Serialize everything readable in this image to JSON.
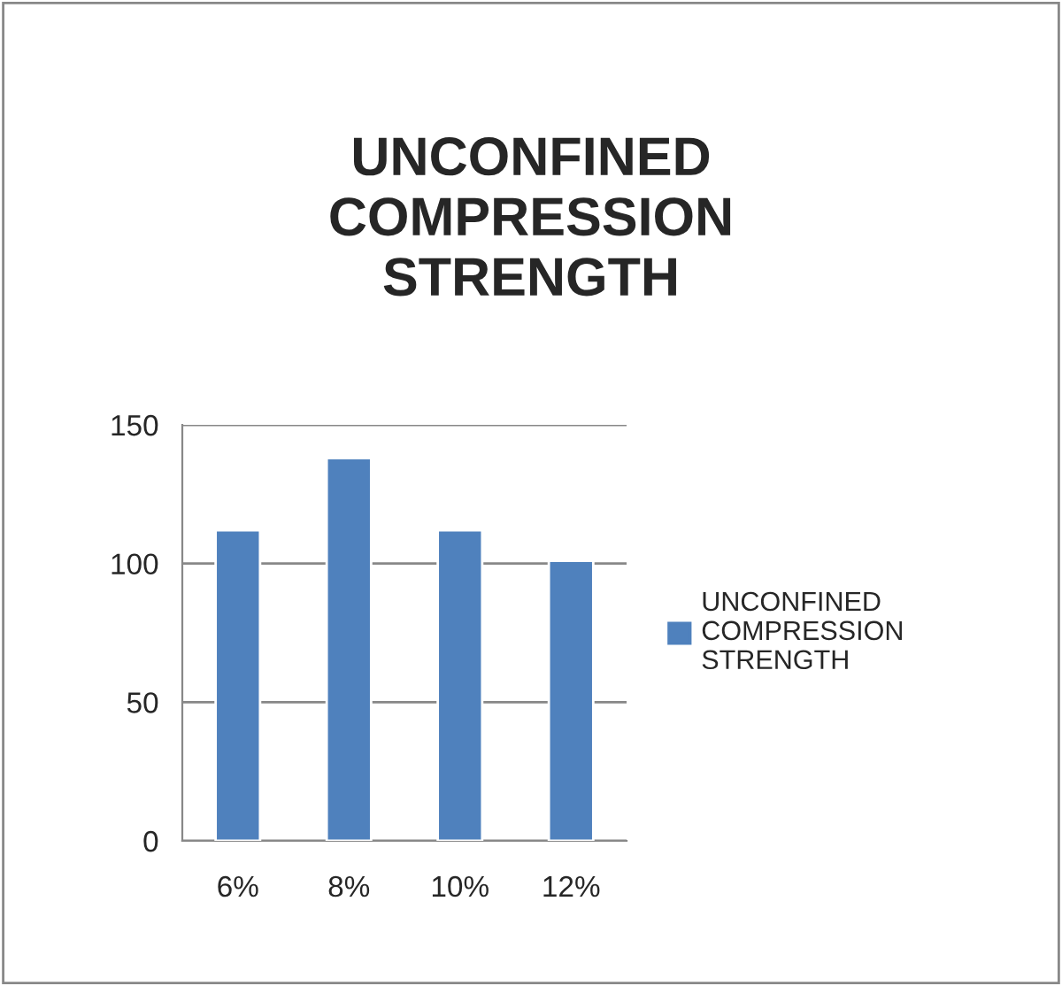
{
  "chart_data": {
    "type": "bar",
    "title": "UNCONFINED\nCOMPRESSION\nSTRENGTH",
    "categories": [
      "6%",
      "8%",
      "10%",
      "12%"
    ],
    "series": [
      {
        "name": "UNCONFINED\nCOMPRESSION\nSTRENGTH",
        "color": "#4f81bd",
        "values": [
          112,
          138,
          112,
          101
        ]
      }
    ],
    "ylim": [
      0,
      150
    ],
    "yticks": [
      0,
      50,
      100,
      150
    ],
    "grid": "y",
    "legend": "right"
  }
}
